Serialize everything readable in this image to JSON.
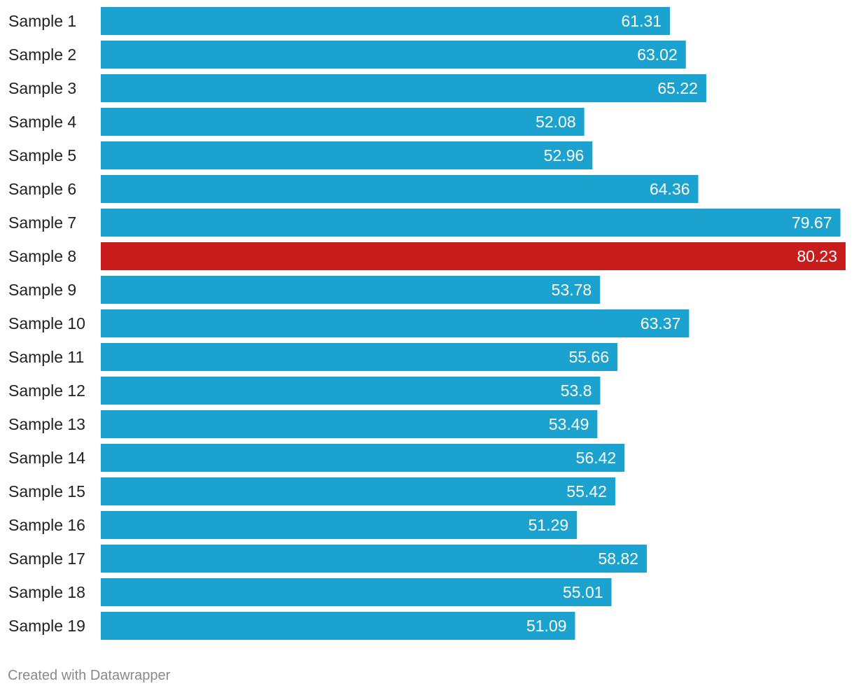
{
  "chart_data": {
    "type": "bar",
    "orientation": "horizontal",
    "title": "",
    "xlabel": "",
    "ylabel": "",
    "categories": [
      "Sample 1",
      "Sample 2",
      "Sample 3",
      "Sample 4",
      "Sample 5",
      "Sample 6",
      "Sample 7",
      "Sample 8",
      "Sample 9",
      "Sample 10",
      "Sample 11",
      "Sample 12",
      "Sample 13",
      "Sample 14",
      "Sample 15",
      "Sample 16",
      "Sample 17",
      "Sample 18",
      "Sample 19"
    ],
    "values": [
      61.31,
      63.02,
      65.22,
      52.08,
      52.96,
      64.36,
      79.67,
      80.23,
      53.78,
      63.37,
      55.66,
      53.8,
      53.49,
      56.42,
      55.42,
      51.29,
      58.82,
      55.01,
      51.09
    ],
    "value_labels": [
      "61.31",
      "63.02",
      "65.22",
      "52.08",
      "52.96",
      "64.36",
      "79.67",
      "80.23",
      "53.78",
      "63.37",
      "55.66",
      "53.8",
      "53.49",
      "56.42",
      "55.42",
      "51.29",
      "58.82",
      "55.01",
      "51.09"
    ],
    "highlight_index": 7,
    "colors": {
      "bar": "#1ba2cf",
      "highlight": "#c71e1d",
      "value_text": "#ffffff",
      "category_text": "#222222"
    },
    "xlim": [
      0,
      80.23
    ],
    "grid": false,
    "legend": "none"
  },
  "footer": {
    "credit": "Created with Datawrapper"
  }
}
